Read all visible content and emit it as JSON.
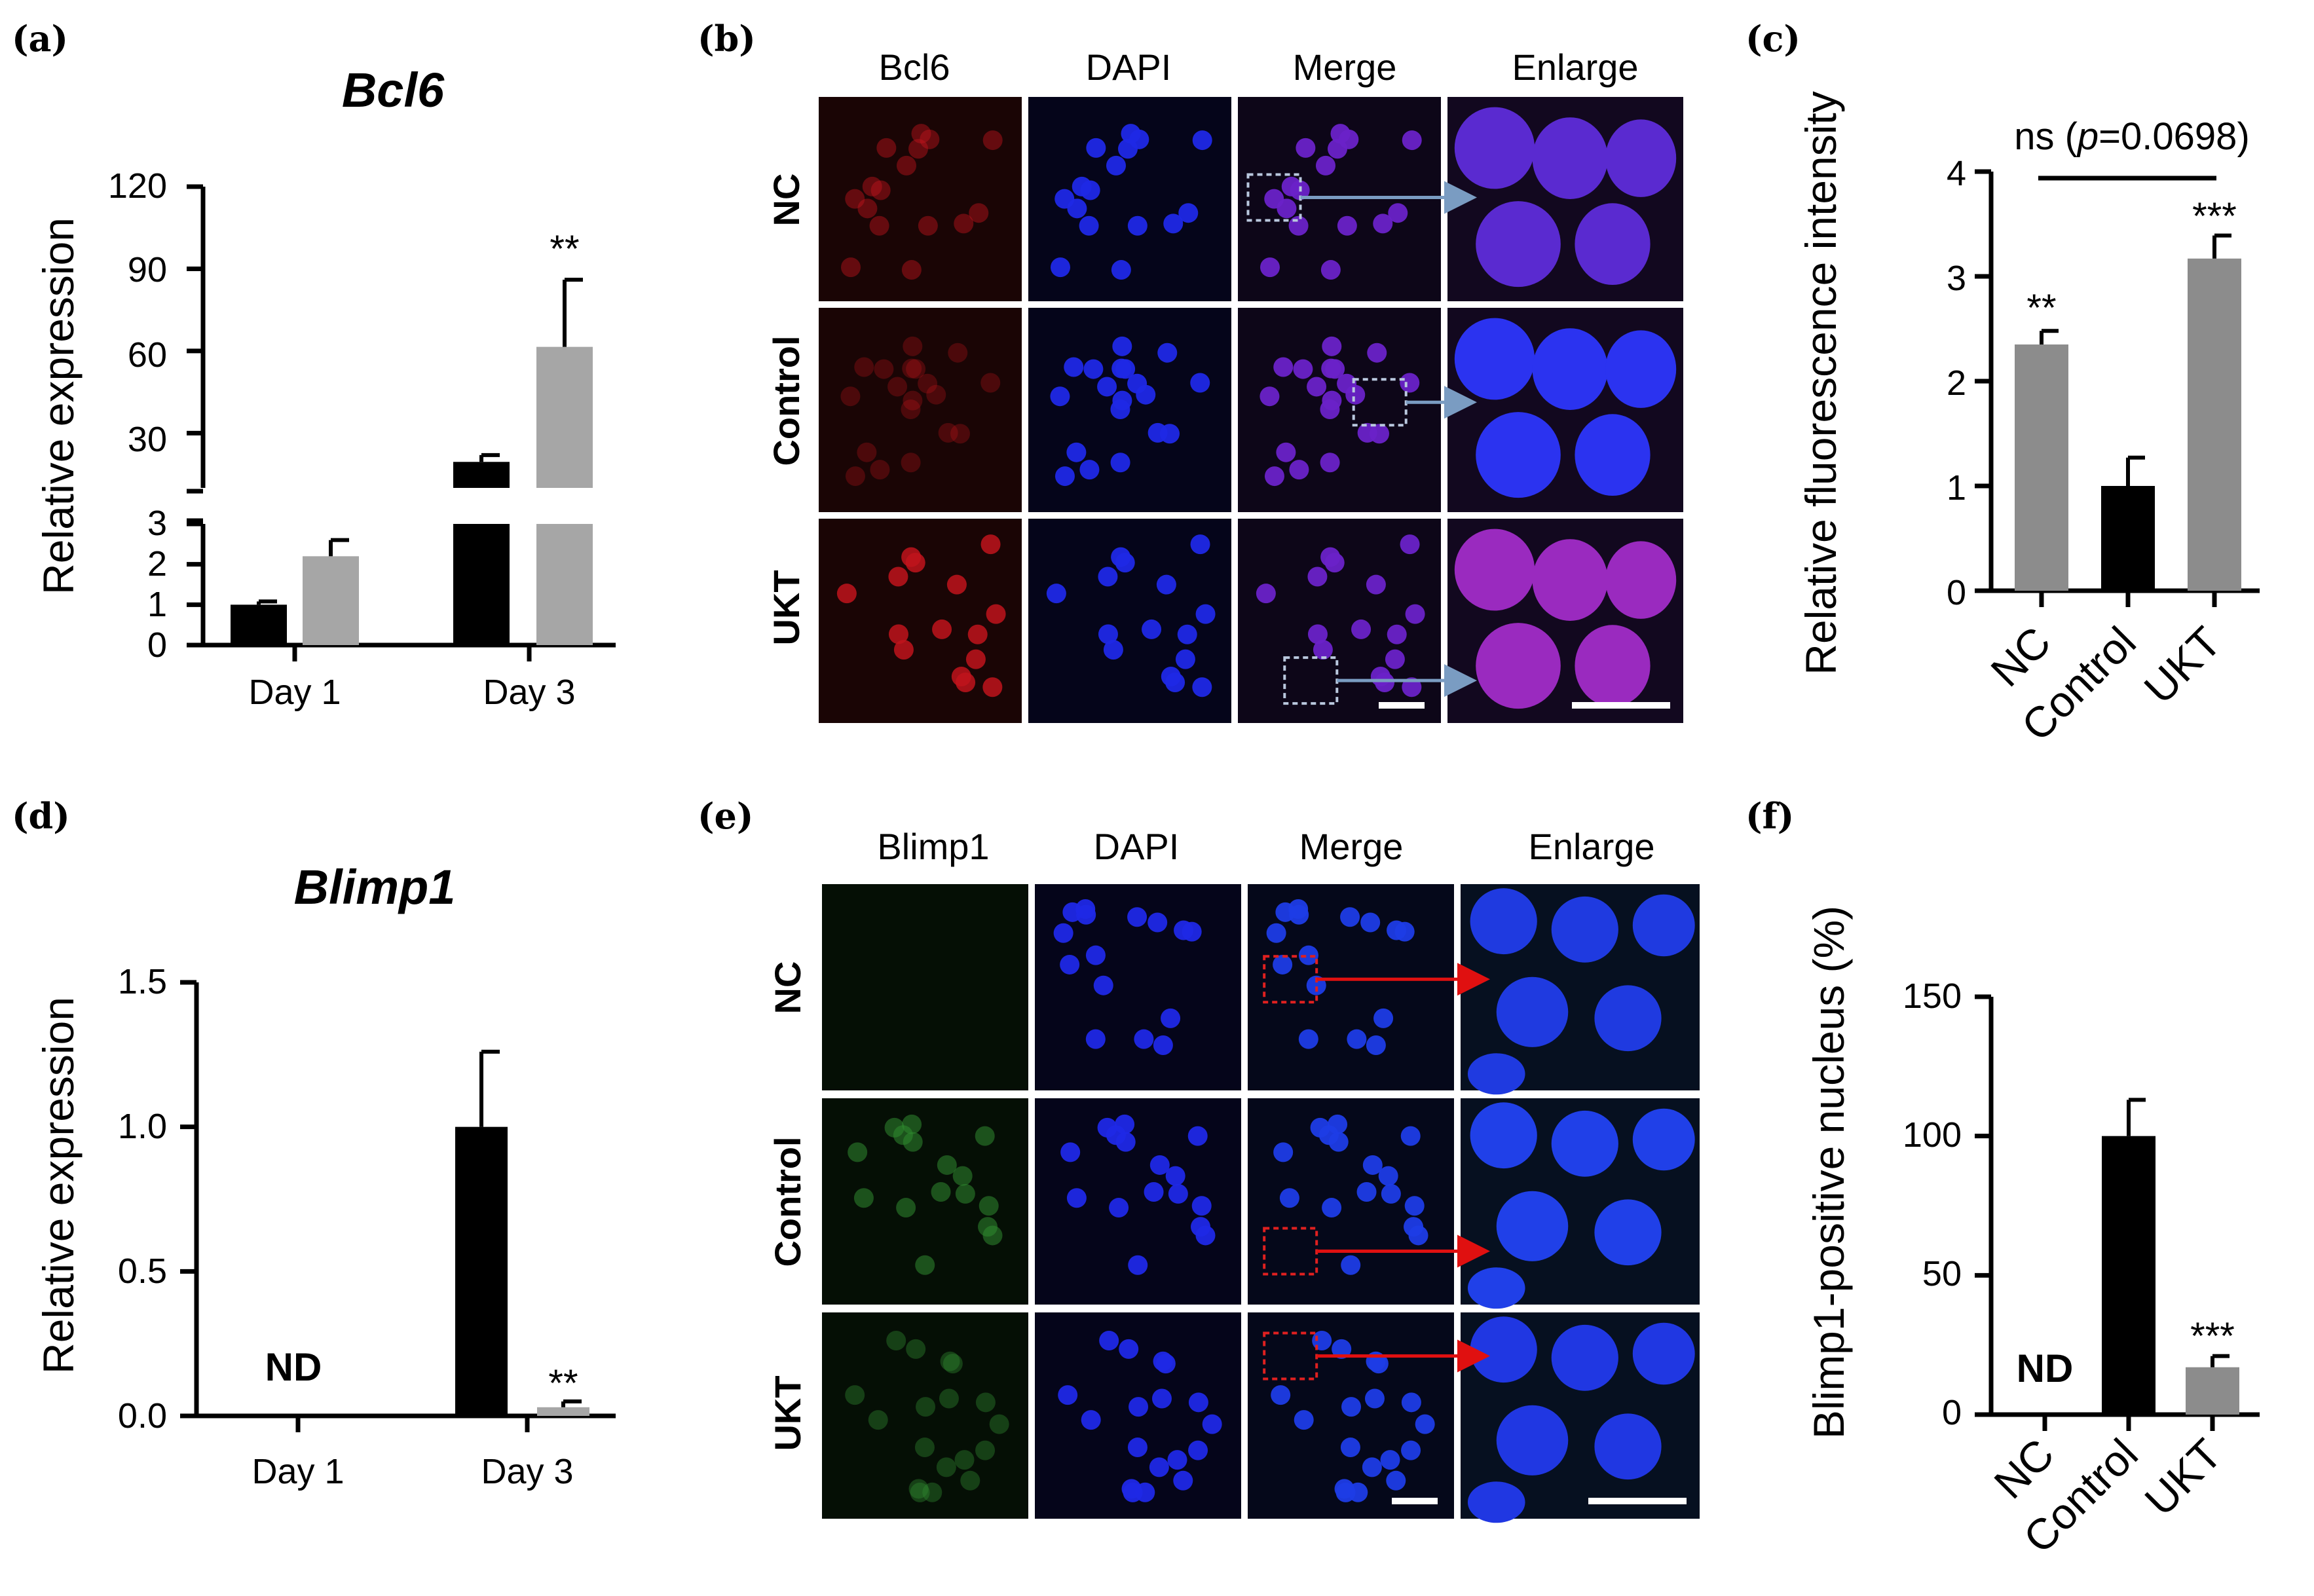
{
  "colors": {
    "black_bar": "#000000",
    "gray_bar_a": "#a6a6a6",
    "gray_bar_c": "#8c8c8c",
    "bcl6_signal": "#c0141c",
    "dapi_signal": "#1f28e6",
    "blimp1_signal": "#2f8a2f",
    "arrow_b": "#7a9cc2",
    "arrow_e": "#e01010"
  },
  "panels": {
    "a": {
      "letter": "(a)"
    },
    "b": {
      "letter": "(b)",
      "columns": [
        "Bcl6",
        "DAPI",
        "Merge",
        "Enlarge"
      ],
      "rows": [
        "NC",
        "Control",
        "UKT"
      ]
    },
    "c": {
      "letter": "(c)",
      "ns_label": "ns (",
      "ns_p": "p",
      "ns_value": "=0.0698)"
    },
    "d": {
      "letter": "(d)"
    },
    "e": {
      "letter": "(e)",
      "columns": [
        "Blimp1",
        "DAPI",
        "Merge",
        "Enlarge"
      ],
      "rows": [
        "NC",
        "Control",
        "UKT"
      ]
    },
    "f": {
      "letter": "(f)"
    }
  },
  "chart_data": [
    {
      "panel": "a",
      "type": "bar",
      "title": "Bcl6",
      "ylabel": "Relative expression",
      "categories": [
        "Day 1",
        "Day 3"
      ],
      "axis_break": {
        "lower": [
          0,
          3
        ],
        "upper": [
          10,
          120
        ]
      },
      "yticks_lower": [
        "0",
        "1",
        "2",
        "3"
      ],
      "yticks_upper": [
        "30",
        "60",
        "90",
        "120"
      ],
      "series": [
        {
          "values": [
            1.0,
            19.5
          ],
          "errors": [
            0.08,
            2.5
          ],
          "color": "#000000"
        },
        {
          "values": [
            2.2,
            61.5
          ],
          "errors": [
            0.4,
            24.5
          ],
          "color": "#a6a6a6"
        }
      ],
      "annotations": [
        {
          "category": "Day 3",
          "series": 2,
          "text": "**"
        }
      ]
    },
    {
      "panel": "c",
      "type": "bar",
      "ylabel": "Relative  fluorescence intensity",
      "categories": [
        "NC",
        "Control",
        "UKT"
      ],
      "values": [
        2.35,
        1.0,
        3.17
      ],
      "errors": [
        0.13,
        0.27,
        0.22
      ],
      "colors": [
        "#8c8c8c",
        "#000000",
        "#8c8c8c"
      ],
      "ylim": [
        0,
        4
      ],
      "yticks": [
        "0",
        "1",
        "2",
        "3",
        "4"
      ],
      "annotations": [
        {
          "category": "NC",
          "text": "**"
        },
        {
          "category": "UKT",
          "text": "***"
        }
      ]
    },
    {
      "panel": "d",
      "type": "bar",
      "title": "Blimp1",
      "ylabel": "Relative expression",
      "categories": [
        "Day  1",
        "Day 3"
      ],
      "ylim": [
        0,
        1.5
      ],
      "yticks": [
        "0.0",
        "0.5",
        "1.0",
        "1.5"
      ],
      "series": [
        {
          "values": [
            null,
            1.0
          ],
          "errors": [
            null,
            0.26
          ],
          "color": "#000000"
        },
        {
          "values": [
            null,
            0.03
          ],
          "errors": [
            null,
            0.02
          ],
          "color": "#a6a6a6"
        }
      ],
      "annotations": [
        {
          "category": "Day  1",
          "text": "ND"
        },
        {
          "category": "Day 3",
          "series": 2,
          "text": "**"
        }
      ]
    },
    {
      "panel": "f",
      "type": "bar",
      "ylabel": "Blimp1-positive nucleus (%)",
      "categories": [
        "NC",
        "Control",
        "UKT"
      ],
      "values": [
        null,
        100,
        17
      ],
      "errors": [
        null,
        13,
        4
      ],
      "colors": [
        "#8c8c8c",
        "#000000",
        "#8c8c8c"
      ],
      "ylim": [
        0,
        150
      ],
      "yticks": [
        "0",
        "50",
        "100",
        "150"
      ],
      "annotations": [
        {
          "category": "NC",
          "text": "ND"
        },
        {
          "category": "UKT",
          "text": "***"
        }
      ]
    }
  ]
}
